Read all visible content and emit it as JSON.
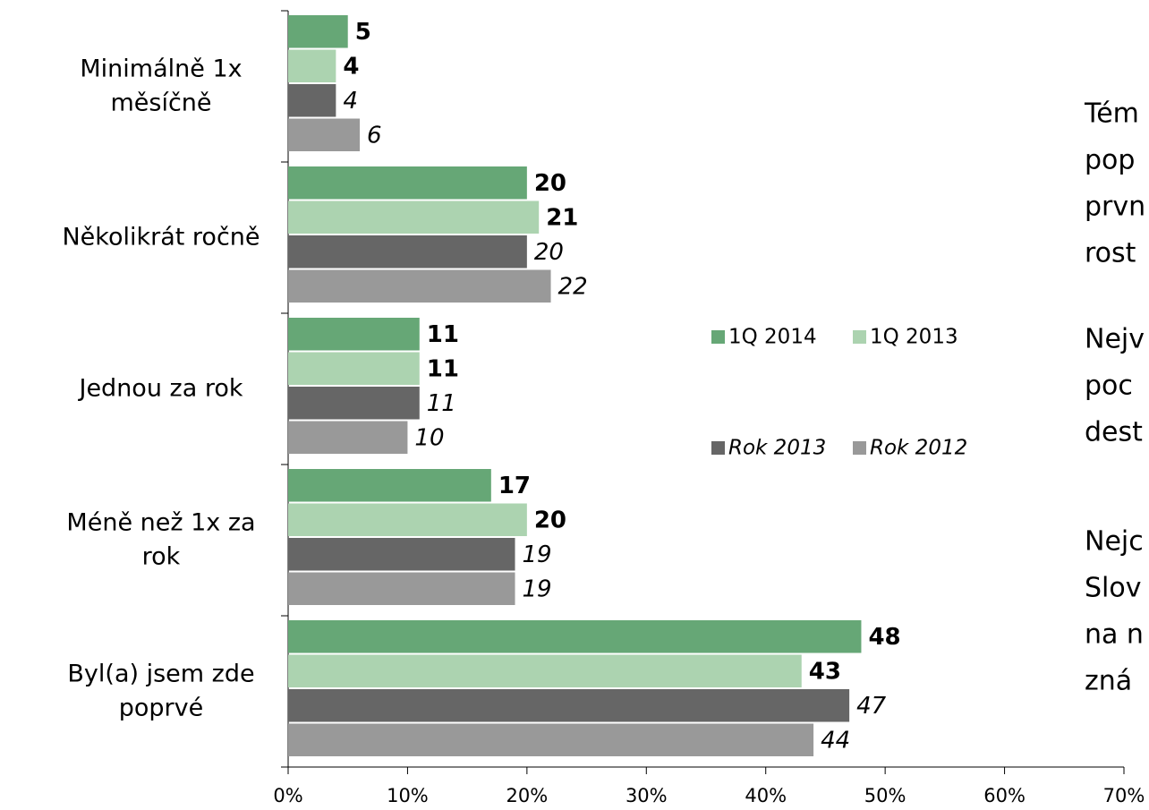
{
  "chart_data": {
    "type": "hbar",
    "categories": [
      "Minimálně 1x\nměsíčně",
      "Několikrát ročně",
      "Jednou za rok",
      "Méně než 1x za\nrok",
      "Byl(a) jsem zde\npoprvé"
    ],
    "series": [
      {
        "name": "1Q 2014",
        "color": "#66a776",
        "label_style": "bold",
        "values": [
          5,
          20,
          11,
          17,
          48
        ]
      },
      {
        "name": "1Q 2013",
        "color": "#acd3b0",
        "label_style": "bold",
        "values": [
          4,
          21,
          11,
          20,
          43
        ]
      },
      {
        "name": "Rok 2013",
        "color": "#666666",
        "label_style": "italic",
        "values": [
          4,
          20,
          11,
          19,
          47
        ]
      },
      {
        "name": "Rok 2012",
        "color": "#999999",
        "label_style": "italic",
        "values": [
          6,
          22,
          10,
          19,
          44
        ]
      }
    ],
    "xlim": [
      0,
      70
    ],
    "xticks": [
      {
        "value": 0,
        "label": "0%"
      },
      {
        "value": 10,
        "label": "10%"
      },
      {
        "value": 20,
        "label": "20%"
      },
      {
        "value": 30,
        "label": "30%"
      },
      {
        "value": 40,
        "label": "40%"
      },
      {
        "value": 50,
        "label": "50%"
      },
      {
        "value": 60,
        "label": "60%"
      },
      {
        "value": 70,
        "label": "70%"
      }
    ],
    "legend": "center"
  },
  "notes": [
    [
      "Tém",
      "pop",
      "prvn",
      "rost"
    ],
    [
      "Nejv",
      "poc",
      "dest"
    ],
    [
      "Nejc",
      "Slov",
      "na n",
      "zná"
    ]
  ]
}
